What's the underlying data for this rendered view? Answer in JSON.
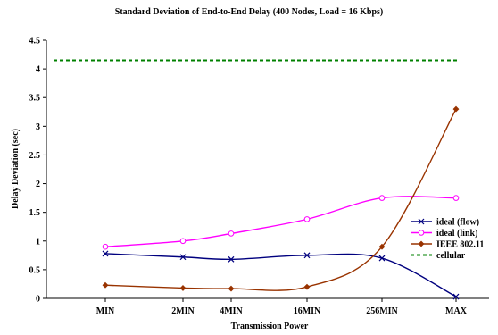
{
  "chart_data": {
    "type": "line",
    "title": "Standard Deviation of End-to-End Delay (400 Nodes, Load = 16 Kbps)",
    "xlabel": "Transmission Power",
    "ylabel": "Delay Deviation (sec)",
    "categories": [
      "MIN",
      "2MIN",
      "4MIN",
      "16MIN",
      "256MIN",
      "MAX"
    ],
    "y_ticks": [
      "0",
      "0.5",
      "1",
      "1.5",
      "2",
      "2.5",
      "3",
      "3.5",
      "4",
      "4.5"
    ],
    "ylim": [
      0,
      4.5
    ],
    "grid": false,
    "legend_position": "right",
    "series": [
      {
        "name": "ideal (flow)",
        "values": [
          0.78,
          0.72,
          0.68,
          0.75,
          0.7,
          0.03
        ],
        "color": "#00007f",
        "marker": "x"
      },
      {
        "name": "ideal (link)",
        "values": [
          0.9,
          1.0,
          1.13,
          1.38,
          1.75,
          1.75
        ],
        "color": "#ff00ff",
        "marker": "circle"
      },
      {
        "name": "IEEE 802.11",
        "values": [
          0.23,
          0.18,
          0.17,
          0.2,
          0.9,
          3.3
        ],
        "color": "#993300",
        "marker": "diamond"
      },
      {
        "name": "cellular",
        "values": [
          4.15,
          4.15,
          4.15,
          4.15,
          4.15,
          4.15
        ],
        "color": "#008000",
        "dashed": true
      }
    ]
  }
}
